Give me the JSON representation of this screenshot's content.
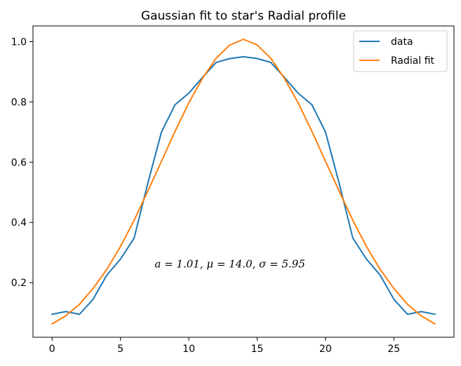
{
  "chart_data": {
    "type": "line",
    "title": "Gaussian fit to star's Radial profile",
    "xlabel": "",
    "ylabel": "",
    "xlim": [
      -1.4,
      29.4
    ],
    "ylim": [
      0.0188,
      1.0522
    ],
    "xticks": [
      0,
      5,
      10,
      15,
      20,
      25
    ],
    "xtick_labels": [
      "0",
      "5",
      "10",
      "15",
      "20",
      "25"
    ],
    "yticks": [
      0.2,
      0.4,
      0.6,
      0.8,
      1.0
    ],
    "ytick_labels": [
      "0.2",
      "0.4",
      "0.6",
      "0.8",
      "1.0"
    ],
    "grid": false,
    "legend_position": "top-right",
    "annotation": {
      "text": "a = 1.01, μ = 14.0, σ = 5.95",
      "x": 7.5,
      "y": 0.25
    },
    "x": [
      0,
      1,
      2,
      3,
      4,
      5,
      6,
      7,
      8,
      9,
      10,
      11,
      12,
      13,
      14,
      15,
      16,
      17,
      18,
      19,
      20,
      21,
      22,
      23,
      24,
      25,
      26,
      27,
      28
    ],
    "series": [
      {
        "name": "data",
        "color": "#1f77b4",
        "values": [
          0.095,
          0.104,
          0.095,
          0.145,
          0.225,
          0.278,
          0.348,
          0.53,
          0.7,
          0.791,
          0.829,
          0.881,
          0.931,
          0.944,
          0.95,
          0.944,
          0.931,
          0.881,
          0.829,
          0.791,
          0.7,
          0.53,
          0.348,
          0.278,
          0.225,
          0.145,
          0.095,
          0.104,
          0.095
        ]
      },
      {
        "name": "Radial fit",
        "color": "#ff7f0e",
        "values": [
          0.063,
          0.09,
          0.128,
          0.181,
          0.244,
          0.32,
          0.407,
          0.504,
          0.603,
          0.703,
          0.797,
          0.878,
          0.945,
          0.989,
          1.008,
          0.989,
          0.945,
          0.878,
          0.797,
          0.703,
          0.603,
          0.504,
          0.407,
          0.32,
          0.244,
          0.181,
          0.128,
          0.09,
          0.063
        ]
      }
    ]
  }
}
